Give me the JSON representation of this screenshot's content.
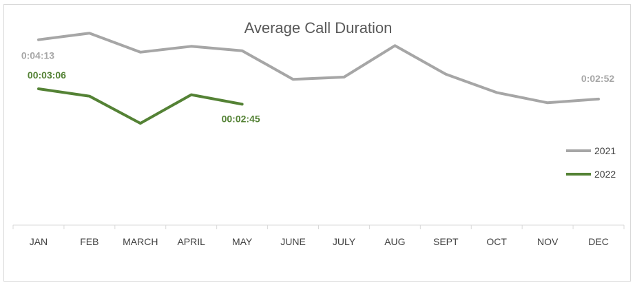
{
  "chart_data": {
    "type": "line",
    "title": "Average Call Duration",
    "xlabel": "",
    "ylabel": "",
    "categories": [
      "JAN",
      "FEB",
      "MARCH",
      "APRIL",
      "MAY",
      "JUNE",
      "JULY",
      "AUG",
      "SEPT",
      "OCT",
      "NOV",
      "DEC"
    ],
    "ylim": [
      "0:00:00",
      "0:04:40"
    ],
    "value_units": "seconds",
    "grid": false,
    "legend_position": "right",
    "series": [
      {
        "name": "2021",
        "color": "#a6a6a6",
        "values": [
          253,
          262,
          236,
          244,
          238,
          199,
          202,
          245,
          206,
          181,
          167,
          172
        ],
        "data_labels": [
          {
            "index": 0,
            "text": "0:04:13"
          },
          {
            "index": 11,
            "text": "0:02:52"
          }
        ]
      },
      {
        "name": "2022",
        "color": "#548235",
        "values": [
          186,
          176,
          139,
          178,
          165,
          null,
          null,
          null,
          null,
          null,
          null,
          null
        ],
        "data_labels": [
          {
            "index": 0,
            "text": "00:03:06"
          },
          {
            "index": 4,
            "text": "00:02:45"
          }
        ]
      }
    ]
  }
}
